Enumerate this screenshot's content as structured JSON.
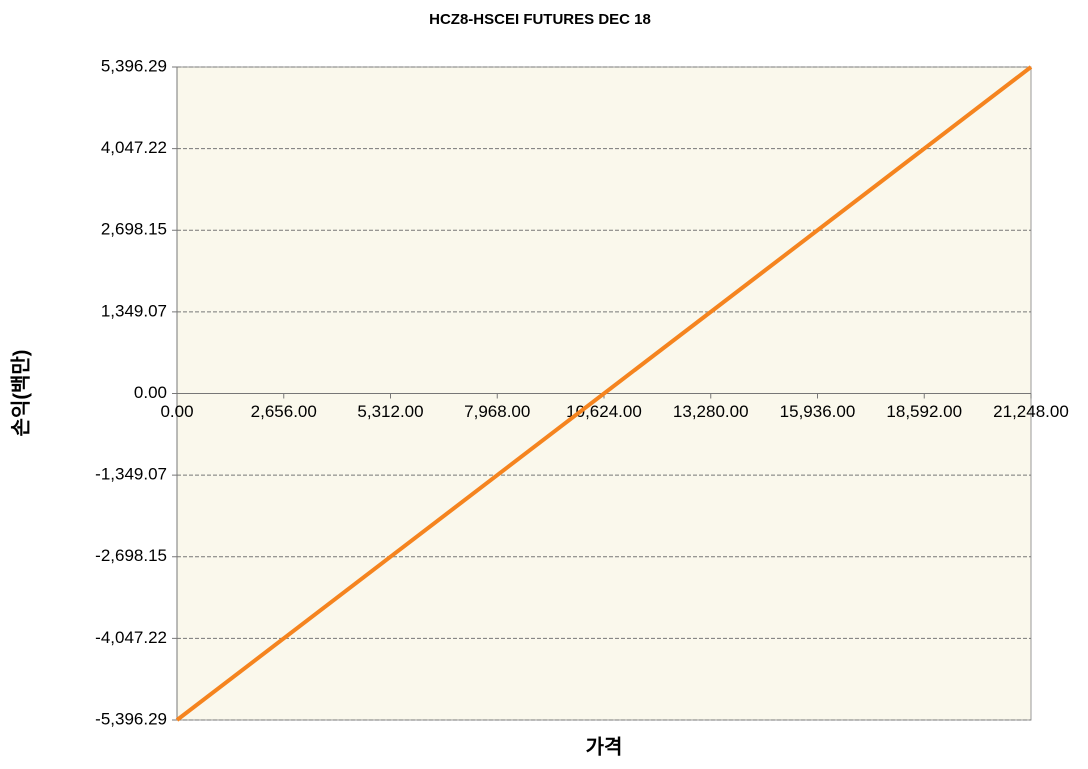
{
  "chart_data": {
    "type": "line",
    "title": "HCZ8-HSCEI FUTURES DEC 18",
    "x_label": "가격",
    "y_label": "손익(백만)",
    "x": [
      0,
      21248
    ],
    "values": [
      -5396.29,
      5396.29
    ],
    "color": "#f5841f",
    "xlim": [
      0,
      21248
    ],
    "xticks": [
      {
        "value": 0,
        "label": "0.00"
      },
      {
        "value": 2656,
        "label": "2,656.00"
      },
      {
        "value": 5312,
        "label": "5,312.00"
      },
      {
        "value": 7968,
        "label": "7,968.00"
      },
      {
        "value": 10624,
        "label": "10,624.00"
      },
      {
        "value": 13280,
        "label": "13,280.00"
      },
      {
        "value": 15936,
        "label": "15,936.00"
      },
      {
        "value": 18592,
        "label": "18,592.00"
      },
      {
        "value": 21248,
        "label": "21,248.00"
      }
    ],
    "ylim": [
      -5396.29,
      5396.29
    ],
    "yticks": [
      {
        "value": -5396.29,
        "label": "-5,396.29"
      },
      {
        "value": -4047.22,
        "label": "-4,047.22"
      },
      {
        "value": -2698.15,
        "label": "-2,698.15"
      },
      {
        "value": -1349.07,
        "label": "-1,349.07"
      },
      {
        "value": 0,
        "label": "0.00"
      },
      {
        "value": 1349.07,
        "label": "1,349.07"
      },
      {
        "value": 2698.15,
        "label": "2,698.15"
      },
      {
        "value": 4047.22,
        "label": "4,047.22"
      },
      {
        "value": 5396.29,
        "label": "5,396.29"
      }
    ],
    "grid": true
  }
}
